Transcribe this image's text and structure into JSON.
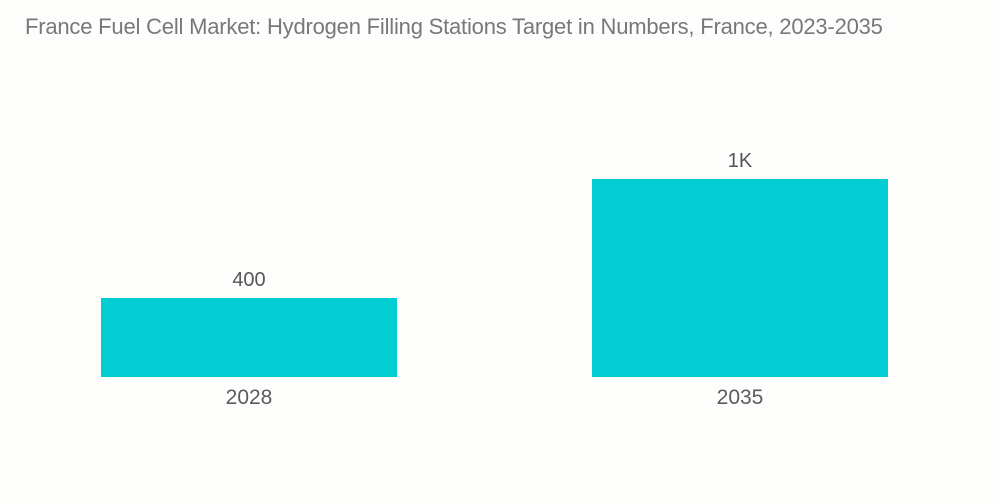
{
  "title": "France Fuel Cell Market: Hydrogen Filling Stations Target in Numbers, France, 2023-2035",
  "colors": {
    "background": "#FDFDFC",
    "bar": "#01CDD3",
    "title_text": "#77787B",
    "value_text": "#54575A",
    "category_text": "#595C5E"
  },
  "chart_data": {
    "type": "bar",
    "title": "France Fuel Cell Market: Hydrogen Filling Stations Target in Numbers, France, 2023-2035",
    "categories": [
      "2028",
      "2035"
    ],
    "values": [
      400,
      1000
    ],
    "value_labels": [
      "400",
      "1K"
    ],
    "series": [
      {
        "name": "Hydrogen Filling Stations Target",
        "values": [
          400,
          1000
        ]
      }
    ],
    "xlabel": "",
    "ylabel": "",
    "ylim": [
      0,
      1000
    ],
    "grid": false,
    "axes_visible": false,
    "legend_position": "none",
    "bar_color": "#01CDD3"
  }
}
